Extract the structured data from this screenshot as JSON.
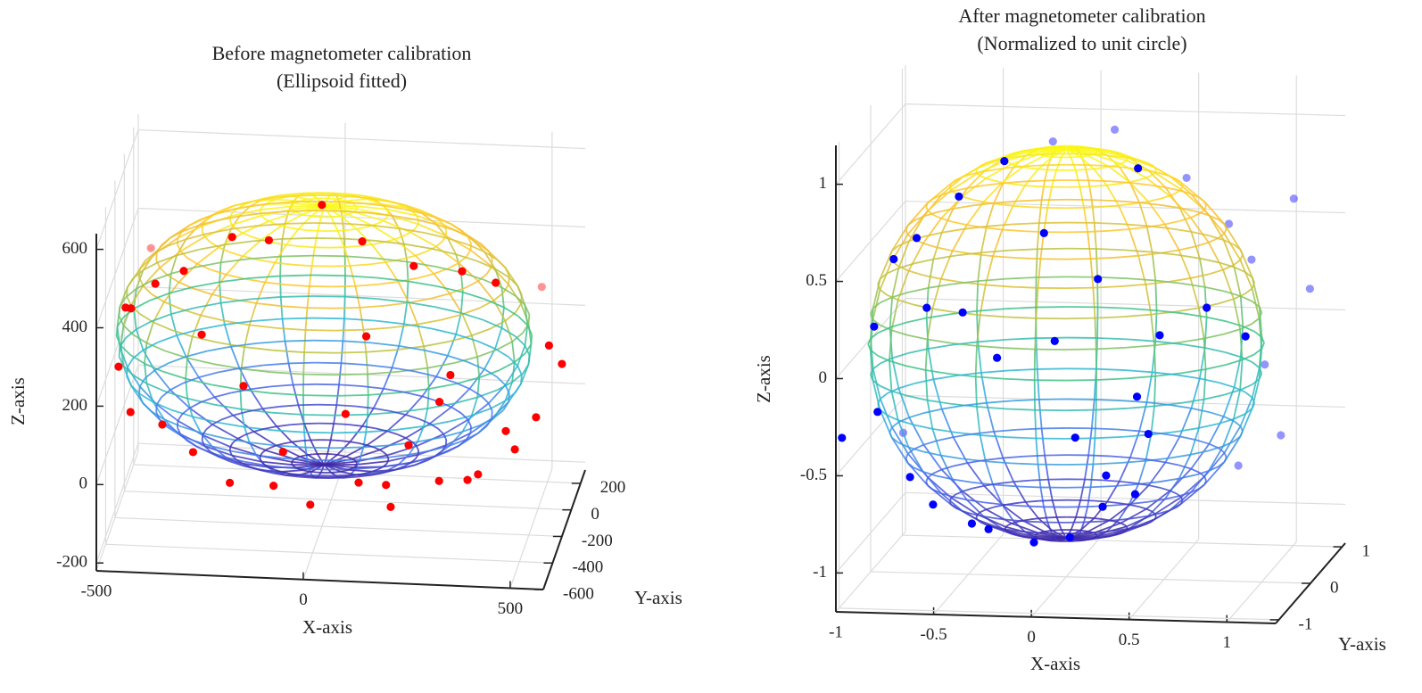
{
  "chart_data": [
    {
      "type": "scatter3d",
      "title": [
        "Before magnetometer calibration",
        "(Ellipsoid fitted)"
      ],
      "xlabel": "X-axis",
      "ylabel": "Y-axis",
      "zlabel": "Z-axis",
      "xlim": [
        -500,
        580
      ],
      "ylim": [
        -600,
        300
      ],
      "zlim": [
        -220,
        640
      ],
      "xticks": [
        -500,
        0,
        500
      ],
      "yticks": [
        -600,
        -400,
        -200,
        0,
        200
      ],
      "zticks": [
        -200,
        0,
        200,
        400,
        600
      ],
      "grid": true,
      "color": "#ff0000",
      "ellipsoid": {
        "center": [
          0,
          -150,
          250
        ],
        "radii": [
          500,
          450,
          330
        ]
      },
      "colormap": [
        "#3e26a8",
        "#4a6cf0",
        "#2fb7d8",
        "#3fc38a",
        "#c9c23a",
        "#fdc030",
        "#f9fb15"
      ],
      "x": [
        -450,
        -480,
        -430,
        -380,
        -300,
        -200,
        -100,
        0,
        120,
        250,
        350,
        420,
        520,
        560,
        580,
        540,
        500,
        450,
        380,
        300,
        200,
        100,
        0,
        -100,
        -200,
        -300,
        -380,
        -440,
        -480,
        -150,
        100,
        250,
        350,
        150,
        -50,
        200,
        420,
        320,
        -250
      ],
      "y": [
        -300,
        -150,
        -50,
        -400,
        -500,
        -350,
        -450,
        -200,
        -400,
        -450,
        -300,
        -200,
        -100,
        -300,
        -200,
        -400,
        -500,
        -250,
        -450,
        -350,
        -500,
        -300,
        -450,
        -350,
        -400,
        -300,
        -250,
        -400,
        -300,
        -550,
        -580,
        -560,
        -550,
        -580,
        -590,
        -600,
        -580,
        -520,
        -560
      ],
      "z": [
        350,
        300,
        420,
        450,
        520,
        560,
        590,
        600,
        580,
        540,
        480,
        420,
        380,
        300,
        220,
        150,
        100,
        60,
        0,
        -40,
        -60,
        -70,
        -80,
        -70,
        -50,
        -10,
        40,
        120,
        200,
        250,
        200,
        120,
        300,
        400,
        100,
        30,
        60,
        220,
        380
      ]
    },
    {
      "type": "scatter3d",
      "title": [
        "After magnetometer calibration",
        "(Normalized to unit circle)"
      ],
      "xlabel": "X-axis",
      "ylabel": "Y-axis",
      "zlabel": "Z-axis",
      "xlim": [
        -1,
        1.25
      ],
      "ylim": [
        -1.1,
        1.1
      ],
      "zlim": [
        -1.2,
        1.2
      ],
      "xticks": [
        -1,
        -0.5,
        0,
        0.5,
        1
      ],
      "yticks": [
        -1,
        0,
        1
      ],
      "zticks": [
        -1,
        -0.5,
        0,
        0.5,
        1
      ],
      "grid": true,
      "color": "#0000ff",
      "ellipsoid": {
        "center": [
          0,
          0,
          0
        ],
        "radii": [
          1,
          1,
          1
        ]
      },
      "colormap": [
        "#3e26a8",
        "#4a6cf0",
        "#2fb7d8",
        "#3fc38a",
        "#c9c23a",
        "#fdc030",
        "#f9fb15"
      ],
      "x": [
        -0.95,
        -0.9,
        -0.85,
        -0.75,
        -0.6,
        -0.45,
        -0.3,
        -0.1,
        0.1,
        0.3,
        0.45,
        0.55,
        0.35,
        0.2,
        0.5,
        0.6,
        0.8,
        0.95,
        1.0,
        0.9,
        0.8,
        0.6,
        0.4,
        0.2,
        -0.1,
        -0.3,
        -0.5,
        -0.7,
        -0.85,
        -0.4,
        -0.2,
        0.1,
        0.3,
        0.0,
        -0.6,
        1.1,
        1.15,
        1.05,
        0.8,
        -1.05
      ],
      "y": [
        -0.2,
        -0.4,
        0.1,
        -0.3,
        -0.5,
        -0.2,
        -0.6,
        -0.4,
        -0.5,
        -0.7,
        -0.6,
        -0.8,
        -0.9,
        -0.95,
        -0.85,
        -0.75,
        -0.5,
        -0.2,
        0.1,
        0.3,
        0.2,
        0.1,
        -0.2,
        0.3,
        0.2,
        -0.1,
        -0.3,
        -0.4,
        -0.2,
        -0.8,
        -0.95,
        -0.98,
        -0.85,
        -0.7,
        -0.7,
        0.4,
        0.6,
        0.3,
        0.5,
        -0.6
      ],
      "z": [
        0.1,
        -0.3,
        -0.5,
        -0.65,
        -0.75,
        -0.9,
        -0.85,
        -0.95,
        -0.9,
        -0.7,
        -0.65,
        -0.3,
        -0.5,
        -0.3,
        -0.1,
        0.2,
        0.3,
        0.1,
        -0.1,
        0.4,
        0.6,
        0.85,
        0.95,
        1.05,
        1.0,
        0.95,
        0.8,
        0.6,
        0.45,
        0.3,
        0.1,
        0.2,
        0.5,
        0.7,
        0.3,
        0.7,
        0.2,
        -0.5,
        -0.7,
        -0.4
      ]
    }
  ]
}
